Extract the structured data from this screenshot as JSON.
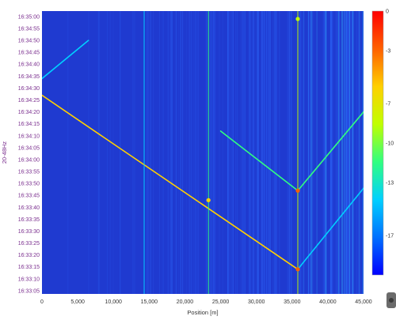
{
  "chart_data": {
    "type": "heatmap",
    "title": "",
    "xlabel": "Position [m]",
    "ylabel": "20-48Hz",
    "x_ticks": [
      "0",
      "5,000",
      "10,000",
      "15,000",
      "20,000",
      "25,000",
      "30,000",
      "35,000",
      "40,000",
      "45,000"
    ],
    "xlim": [
      0,
      45000
    ],
    "y_ticks": [
      "16:35:00",
      "16:34:55",
      "16:34:50",
      "16:34:45",
      "16:34:40",
      "16:34:35",
      "16:34:30",
      "16:34:25",
      "16:34:20",
      "16:34:15",
      "16:34:10",
      "16:34:05",
      "16:34:00",
      "16:33:55",
      "16:33:50",
      "16:33:45",
      "16:33:40",
      "16:33:35",
      "16:33:30",
      "16:33:25",
      "16:33:20",
      "16:33:15",
      "16:33:10",
      "16:33:05"
    ],
    "ylim": [
      "16:33:05",
      "16:35:00"
    ],
    "colorbar": {
      "ticks": [
        "0",
        "-3",
        "-7",
        "-10",
        "-13",
        "-17"
      ],
      "range": [
        -20,
        0
      ],
      "colors": [
        "#0000ff",
        "#0070ff",
        "#00d0ff",
        "#30ff80",
        "#c0ff00",
        "#ffd000",
        "#ff6000",
        "#ff0000"
      ]
    },
    "features": [
      {
        "kind": "diagonal-track",
        "from": {
          "x": 0,
          "y": "16:34:27"
        },
        "to": {
          "x": 35800,
          "y": "16:33:14"
        },
        "intensity": -6
      },
      {
        "kind": "diagonal-track",
        "from": {
          "x": 0,
          "y": "16:34:34"
        },
        "to": {
          "x": 6500,
          "y": "16:34:50"
        },
        "intensity": -13
      },
      {
        "kind": "diagonal-track",
        "from": {
          "x": 35800,
          "y": "16:33:14"
        },
        "to": {
          "x": 45000,
          "y": "16:33:48"
        },
        "intensity": -13
      },
      {
        "kind": "diagonal-track",
        "from": {
          "x": 35800,
          "y": "16:33:47"
        },
        "to": {
          "x": 45000,
          "y": "16:34:20"
        },
        "intensity": -12
      },
      {
        "kind": "diagonal-track",
        "from": {
          "x": 35800,
          "y": "16:33:47"
        },
        "to": {
          "x": 25000,
          "y": "16:34:12"
        },
        "intensity": -12
      },
      {
        "kind": "vertical-line",
        "x": 14300,
        "intensity": -13
      },
      {
        "kind": "vertical-line",
        "x": 23300,
        "intensity": -12
      },
      {
        "kind": "vertical-line",
        "x": 35800,
        "intensity": -9
      },
      {
        "kind": "hotspot",
        "x": 35800,
        "y": "16:33:14",
        "intensity": -4
      },
      {
        "kind": "hotspot",
        "x": 35800,
        "y": "16:33:47",
        "intensity": -2
      },
      {
        "kind": "hotspot",
        "x": 35800,
        "y": "16:34:59",
        "intensity": -9
      },
      {
        "kind": "hotspot",
        "x": 23300,
        "y": "16:33:43",
        "intensity": -6
      }
    ]
  }
}
